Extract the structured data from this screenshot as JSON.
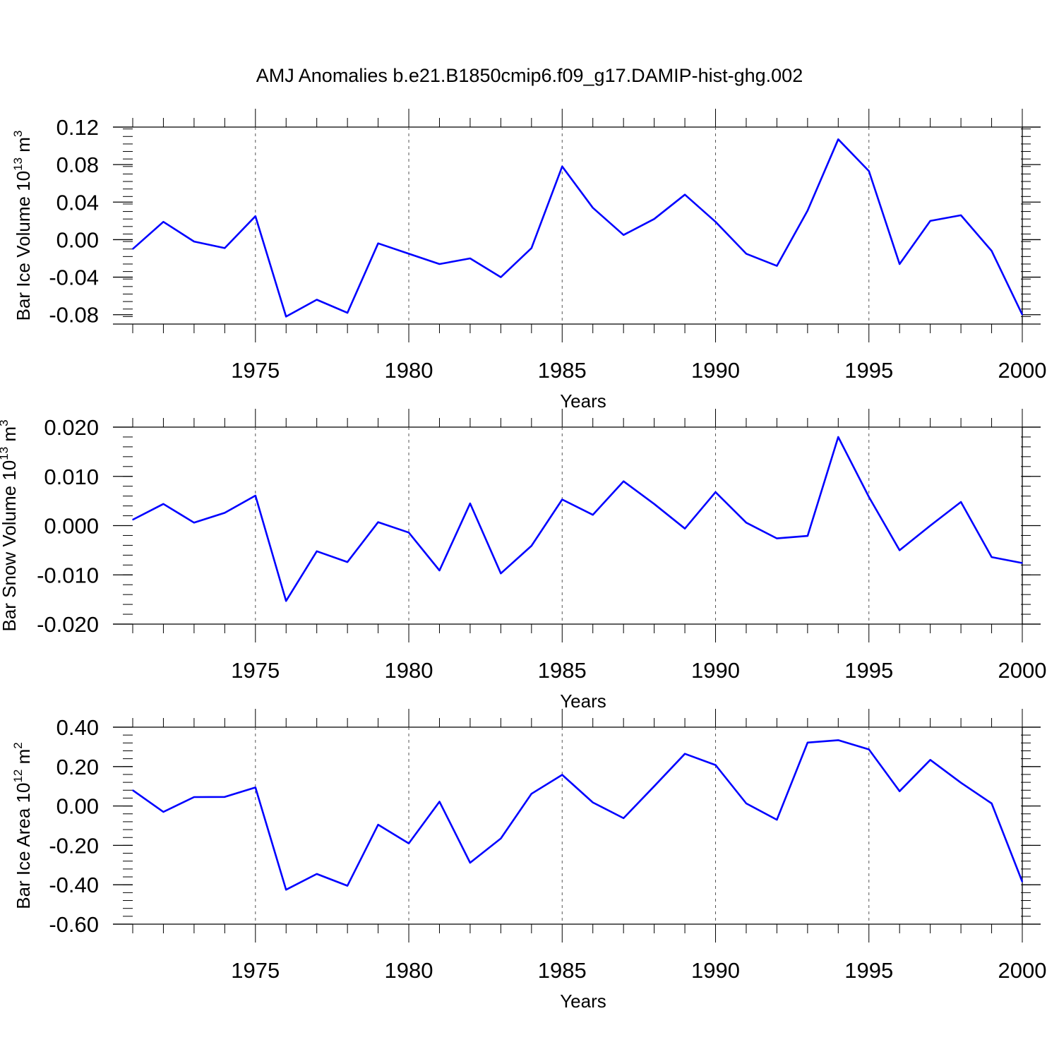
{
  "title": "AMJ Anomalies b.e21.B1850cmip6.f09_g17.DAMIP-hist-ghg.002",
  "colors": {
    "line": "#0000ff",
    "axis": "#000000",
    "grid": "#555555"
  },
  "chart_data": [
    {
      "type": "line",
      "ylabel": {
        "text": "Bar Ice Volume 10",
        "sup": "13",
        "unit": " m",
        "unit_sup": "3"
      },
      "xlabel": "Years",
      "xlim": [
        1971,
        2000
      ],
      "ylim": [
        -0.09,
        0.12
      ],
      "yticks": [
        "0.12",
        "0.08",
        "0.04",
        "0.00",
        "-0.04",
        "-0.08"
      ],
      "ytick_values": [
        0.12,
        0.08,
        0.04,
        0.0,
        -0.04,
        -0.08
      ],
      "yminor_step": 0.008,
      "xticks": [
        "1975",
        "1980",
        "1985",
        "1990",
        "1995",
        "2000"
      ],
      "xtick_values": [
        1975,
        1980,
        1985,
        1990,
        1995,
        2000
      ],
      "grid": "vertical-dashed-at-major-x",
      "series": [
        {
          "x": [
            1971,
            1972,
            1973,
            1974,
            1975,
            1976,
            1977,
            1978,
            1979,
            1980,
            1981,
            1982,
            1983,
            1984,
            1985,
            1986,
            1987,
            1988,
            1989,
            1990,
            1991,
            1992,
            1993,
            1994,
            1995,
            1996,
            1997,
            1998,
            1999,
            2000
          ],
          "values": [
            -0.01,
            0.019,
            -0.002,
            -0.009,
            0.025,
            -0.082,
            -0.064,
            -0.078,
            -0.004,
            -0.015,
            -0.026,
            -0.02,
            -0.04,
            -0.009,
            0.078,
            0.034,
            0.005,
            0.022,
            0.048,
            0.019,
            -0.015,
            -0.028,
            0.031,
            0.107,
            0.073,
            -0.026,
            0.02,
            0.026,
            -0.012,
            -0.08
          ]
        }
      ]
    },
    {
      "type": "line",
      "ylabel": {
        "text": "Bar Snow Volume 10",
        "sup": "13",
        "unit": " m",
        "unit_sup": "3"
      },
      "xlabel": "Years",
      "xlim": [
        1971,
        2000
      ],
      "ylim": [
        -0.02,
        0.02
      ],
      "yticks": [
        "0.020",
        "0.010",
        "0.000",
        "-0.010",
        "-0.020"
      ],
      "ytick_values": [
        0.02,
        0.01,
        0.0,
        -0.01,
        -0.02
      ],
      "yminor_step": 0.002,
      "xticks": [
        "1975",
        "1980",
        "1985",
        "1990",
        "1995",
        "2000"
      ],
      "xtick_values": [
        1975,
        1980,
        1985,
        1990,
        1995,
        2000
      ],
      "grid": "vertical-dashed-at-major-x",
      "series": [
        {
          "x": [
            1971,
            1972,
            1973,
            1974,
            1975,
            1976,
            1977,
            1978,
            1979,
            1980,
            1981,
            1982,
            1983,
            1984,
            1985,
            1986,
            1987,
            1988,
            1989,
            1990,
            1991,
            1992,
            1993,
            1994,
            1995,
            1996,
            1997,
            1998,
            1999,
            2000
          ],
          "values": [
            0.0012,
            0.0044,
            0.0006,
            0.0026,
            0.0061,
            -0.0153,
            -0.0052,
            -0.0074,
            0.0007,
            -0.0014,
            -0.0091,
            0.0045,
            -0.0097,
            -0.0041,
            0.0053,
            0.0022,
            0.009,
            0.0044,
            -0.0006,
            0.0068,
            0.0006,
            -0.0026,
            -0.0021,
            0.018,
            0.0058,
            -0.005,
            0.0,
            0.0048,
            -0.0064,
            -0.0076
          ]
        }
      ]
    },
    {
      "type": "line",
      "ylabel": {
        "text": "Bar Ice Area 10",
        "sup": "12",
        "unit": " m",
        "unit_sup": "2"
      },
      "xlabel": "Years",
      "xlim": [
        1971,
        2000
      ],
      "ylim": [
        -0.6,
        0.4
      ],
      "yticks": [
        "0.40",
        "0.20",
        "0.00",
        "-0.20",
        "-0.40",
        "-0.60"
      ],
      "ytick_values": [
        0.4,
        0.2,
        0.0,
        -0.2,
        -0.4,
        -0.6
      ],
      "yminor_step": 0.04,
      "xticks": [
        "1975",
        "1980",
        "1985",
        "1990",
        "1995",
        "2000"
      ],
      "xtick_values": [
        1975,
        1980,
        1985,
        1990,
        1995,
        2000
      ],
      "grid": "vertical-dashed-at-major-x",
      "series": [
        {
          "x": [
            1971,
            1972,
            1973,
            1974,
            1975,
            1976,
            1977,
            1978,
            1979,
            1980,
            1981,
            1982,
            1983,
            1984,
            1985,
            1986,
            1987,
            1988,
            1989,
            1990,
            1991,
            1992,
            1993,
            1994,
            1995,
            1996,
            1997,
            1998,
            1999,
            2000
          ],
          "values": [
            0.08,
            -0.03,
            0.045,
            0.046,
            0.094,
            -0.425,
            -0.345,
            -0.405,
            -0.095,
            -0.19,
            0.022,
            -0.288,
            -0.165,
            0.062,
            0.158,
            0.018,
            -0.062,
            0.1,
            0.265,
            0.208,
            0.013,
            -0.07,
            0.322,
            0.334,
            0.287,
            0.075,
            0.234,
            0.118,
            0.013,
            -0.385
          ]
        }
      ]
    }
  ]
}
